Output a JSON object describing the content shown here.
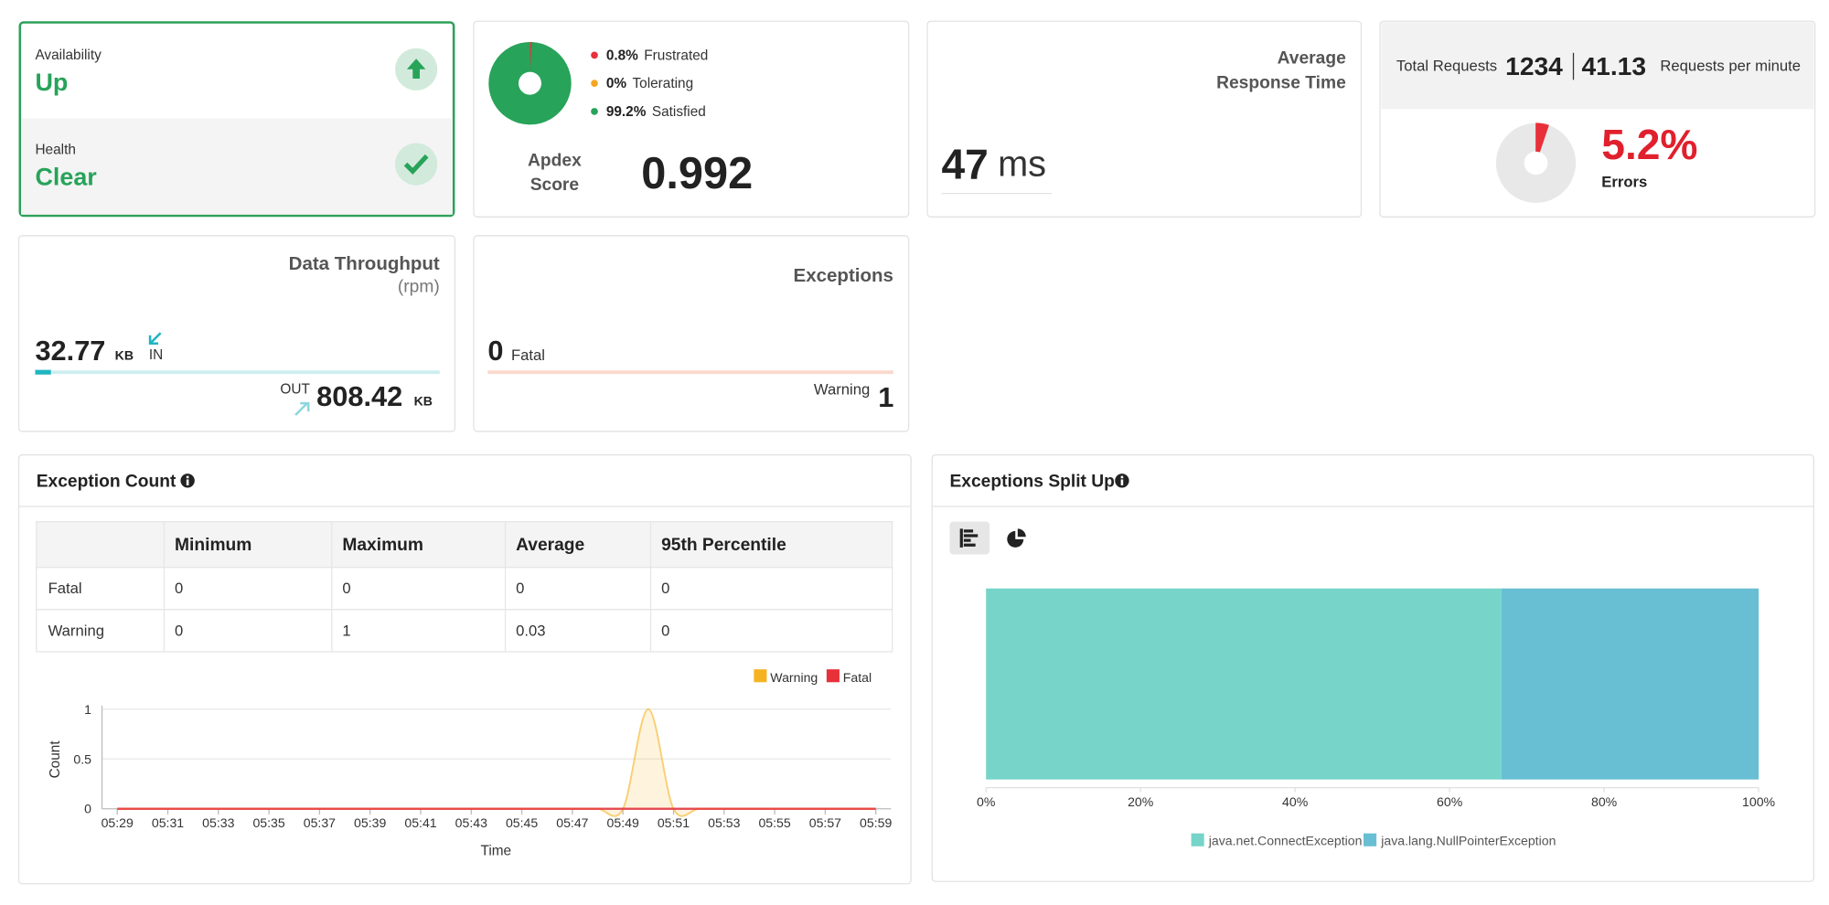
{
  "availability": {
    "label": "Availability",
    "value": "Up"
  },
  "health": {
    "label": "Health",
    "value": "Clear"
  },
  "response_time": {
    "title_lines": [
      "Average",
      "Response Time"
    ],
    "value": 47,
    "unit": "ms"
  },
  "requests": {
    "label": "Total Requests",
    "total": 1234,
    "rate": 41.13,
    "rate_label": "Requests per minute"
  },
  "throughput": {
    "title": "Data Throughput",
    "subtitle": "(rpm)",
    "in": {
      "value": 32.77,
      "unit": "KB",
      "label": "IN"
    },
    "out": {
      "value": 808.42,
      "unit": "KB",
      "label": "OUT"
    }
  },
  "exceptions": {
    "title": "Exceptions",
    "fatal": {
      "value": 0,
      "label": "Fatal"
    },
    "warning": {
      "value": 1,
      "label": "Warning"
    }
  },
  "exception_count": {
    "title": "Exception Count",
    "table": {
      "columns": [
        "Minimum",
        "Maximum",
        "Average",
        "95th Percentile"
      ],
      "rows": [
        [
          "Fatal",
          0,
          0,
          0,
          0
        ],
        [
          "Warning",
          0,
          1,
          0.03,
          0
        ]
      ]
    }
  },
  "chart_data": [
    {
      "type": "donut",
      "categories": [
        "Frustrated",
        "Tolerating",
        "Satisfied"
      ],
      "values": [
        0.8,
        0,
        99.2
      ],
      "value_labels": [
        "0.8%",
        "0%",
        "99.2%"
      ],
      "colors": [
        "#e8303a",
        "#f5a623",
        "#27a35a"
      ],
      "ylim": [
        0,
        100
      ],
      "score_label_lines": [
        "Apdex",
        "Score"
      ],
      "score": 0.992
    },
    {
      "type": "donut",
      "categories": [
        "Errors"
      ],
      "values": [
        5.2
      ],
      "value_labels": [
        "5.2%"
      ],
      "colors": [
        "#e8303a"
      ],
      "track_color": "#e8e8e8",
      "ylim": [
        0,
        100
      ]
    },
    {
      "type": "line",
      "xlabel": "Time",
      "ylabel": "Count",
      "categories": [
        "05:29",
        null,
        "05:31",
        null,
        "05:33",
        null,
        "05:35",
        null,
        "05:37",
        null,
        "05:39",
        null,
        "05:41",
        null,
        "05:43",
        null,
        "05:45",
        null,
        "05:47",
        null,
        "05:49",
        null,
        "05:51",
        null,
        "05:53",
        null,
        "05:55",
        null,
        "05:57",
        null,
        "05:59"
      ],
      "series": [
        {
          "name": "Warning",
          "color": "#f5b324",
          "fill": true,
          "values": [
            0,
            0,
            0,
            0,
            0,
            0,
            0,
            0,
            0,
            0,
            0,
            0,
            0,
            0,
            0,
            0,
            0,
            0,
            0,
            0,
            0,
            1,
            0,
            0,
            0,
            0,
            0,
            0,
            0,
            0,
            0
          ]
        },
        {
          "name": "Fatal",
          "color": "#e8303a",
          "values": [
            0,
            0,
            0,
            0,
            0,
            0,
            0,
            0,
            0,
            0,
            0,
            0,
            0,
            0,
            0,
            0,
            0,
            0,
            0,
            0,
            0,
            0,
            0,
            0,
            0,
            0,
            0,
            0,
            0,
            0,
            0
          ]
        }
      ],
      "ylim": [
        0,
        1
      ],
      "yticks": [
        0,
        0.5,
        1
      ],
      "grid": true
    },
    {
      "type": "stacked_bar",
      "title": "Exceptions Split Up",
      "orientation": "horizontal",
      "series": [
        {
          "name": "java.net.ConnectException",
          "color": "#76d4c8",
          "values": [
            66.7
          ]
        },
        {
          "name": "java.lang.NullPointerException",
          "color": "#68bfd4",
          "values": [
            33.3
          ]
        }
      ],
      "xlim": [
        0,
        100
      ],
      "xticks": [
        {
          "value": 0,
          "label": "0%"
        },
        {
          "value": 20,
          "label": "20%"
        },
        {
          "value": 40,
          "label": "40%"
        },
        {
          "value": 60,
          "label": "60%"
        },
        {
          "value": 80,
          "label": "80%"
        },
        {
          "value": 100,
          "label": "100%"
        }
      ],
      "grid": false
    }
  ]
}
